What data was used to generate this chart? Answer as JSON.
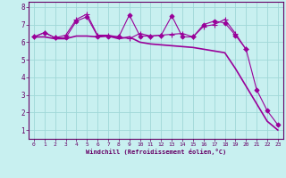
{
  "xlabel": "Windchill (Refroidissement éolien,°C)",
  "bg_color": "#c8f0f0",
  "grid_color": "#a0d8d8",
  "line_color": "#990099",
  "text_color": "#660066",
  "xlim": [
    -0.5,
    23.5
  ],
  "ylim": [
    0.5,
    8.3
  ],
  "yticks": [
    1,
    2,
    3,
    4,
    5,
    6,
    7,
    8
  ],
  "xticks": [
    0,
    1,
    2,
    3,
    4,
    5,
    6,
    7,
    8,
    9,
    10,
    11,
    12,
    13,
    14,
    15,
    16,
    17,
    18,
    19,
    20,
    21,
    22,
    23
  ],
  "series": [
    {
      "x": [
        0,
        1,
        2,
        3,
        4,
        5,
        6,
        7,
        8,
        9,
        10,
        11,
        12,
        13,
        14,
        15,
        16,
        17,
        18,
        19,
        20,
        21,
        22,
        23
      ],
      "y": [
        6.3,
        6.3,
        6.2,
        6.2,
        6.35,
        6.35,
        6.3,
        6.35,
        6.2,
        6.3,
        6.0,
        5.9,
        5.85,
        5.8,
        5.75,
        5.7,
        5.6,
        5.5,
        5.4,
        4.5,
        3.5,
        2.5,
        1.5,
        1.0
      ],
      "marker": null,
      "linewidth": 1.2,
      "style": "solid"
    },
    {
      "x": [
        0,
        1,
        2,
        3,
        4,
        5,
        6,
        7,
        8,
        9,
        10,
        11,
        12,
        13,
        14,
        15,
        16,
        17,
        18,
        19,
        20,
        21,
        22,
        23
      ],
      "y": [
        6.3,
        6.55,
        6.25,
        6.25,
        7.2,
        7.45,
        6.35,
        6.35,
        6.3,
        7.55,
        6.35,
        6.35,
        6.4,
        7.5,
        6.3,
        6.3,
        7.0,
        7.2,
        7.1,
        6.4,
        5.6,
        3.3,
        2.1,
        1.3
      ],
      "marker": "D",
      "markersize": 2.5,
      "linewidth": 0.8
    },
    {
      "x": [
        0,
        1,
        2,
        3,
        4,
        5,
        6,
        7,
        8,
        9,
        10,
        11,
        12,
        13,
        14,
        15,
        16,
        17,
        18,
        19,
        20
      ],
      "y": [
        6.3,
        6.55,
        6.25,
        6.4,
        7.3,
        7.6,
        6.4,
        6.4,
        6.3,
        6.2,
        6.5,
        6.35,
        6.4,
        6.45,
        6.5,
        6.3,
        6.9,
        7.0,
        7.3,
        6.5,
        5.6
      ],
      "marker": "+",
      "markersize": 4,
      "linewidth": 0.8
    }
  ]
}
